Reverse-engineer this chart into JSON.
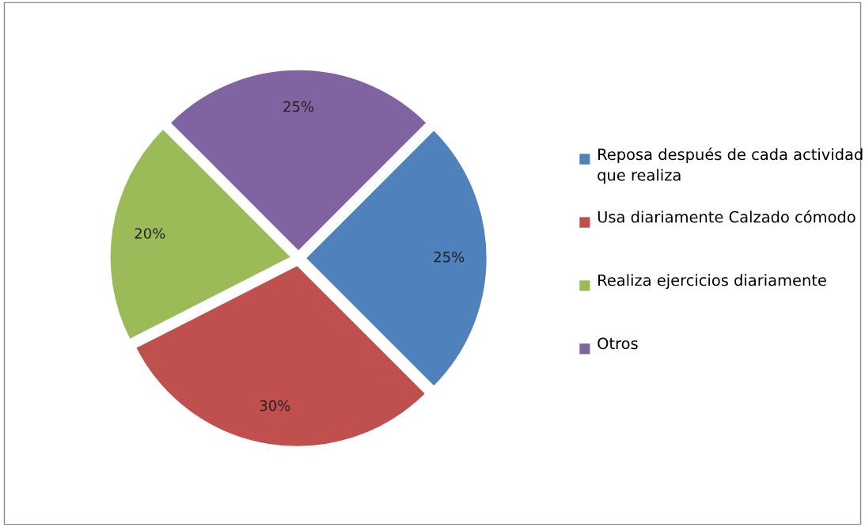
{
  "chart_data": {
    "type": "pie",
    "categories": [
      "Reposa después de cada actividad que realiza",
      "Usa diariamente Calzado cómodo",
      "Realiza ejercicios diariamente",
      "Otros"
    ],
    "values": [
      25,
      30,
      20,
      25
    ],
    "colors": [
      "#4f81bd",
      "#c0504d",
      "#9bbb59",
      "#8064a2"
    ],
    "value_labels": [
      "25%",
      "30%",
      "20%",
      "25%"
    ],
    "legend": "right"
  }
}
